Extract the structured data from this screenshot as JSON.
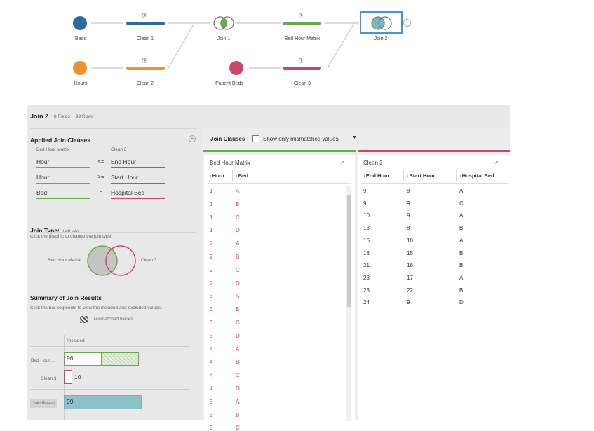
{
  "flow": {
    "nodes": [
      {
        "label": "Beds",
        "type": "input",
        "color": "#2e6a99"
      },
      {
        "label": "Clean 1",
        "type": "clean",
        "color": "#2e6a99"
      },
      {
        "label": "Hours",
        "type": "input",
        "color": "#f28e2b"
      },
      {
        "label": "Clean 2",
        "type": "clean",
        "color": "#f28e2b"
      },
      {
        "label": "Join 1",
        "type": "join"
      },
      {
        "label": "Bed Hour Matrix",
        "type": "clean",
        "color": "#6aa84f"
      },
      {
        "label": "Patient Beds",
        "type": "input",
        "color": "#c9486b"
      },
      {
        "label": "Clean 3",
        "type": "clean",
        "color": "#c9486b"
      },
      {
        "label": "Join 2",
        "type": "join",
        "selected": true
      }
    ]
  },
  "header": {
    "title": "Join 2",
    "fields": "8 Fields",
    "rows": "99 Rows"
  },
  "clauses": {
    "title": "Applied Join Clauses",
    "left_source": "Bed Hour Matrix",
    "right_source": "Clean 3",
    "items": [
      {
        "left": "Hour",
        "op": "<=",
        "right": "End Hour"
      },
      {
        "left": "Hour",
        "op": ">=",
        "right": "Start Hour"
      },
      {
        "left": "Bed",
        "op": "=",
        "right": "Hospital Bed"
      }
    ]
  },
  "join_type": {
    "title": "Join Type:",
    "value": "Left join",
    "hint": "Click the graphic to change the join type.",
    "left": "Bed Hour Matrix",
    "right": "Clean 3"
  },
  "summary": {
    "title": "Summary of Join Results",
    "hint": "Click the bar segments to view the included and excluded values.",
    "legend": "Mismatched values",
    "included": "Included",
    "rows": [
      {
        "label": "Bed Hour ...",
        "value": "96"
      },
      {
        "label": "Clean 3",
        "value": "10"
      },
      {
        "label": "Join Result",
        "value": "99"
      }
    ]
  },
  "toolbar": {
    "join_clauses": "Join Clauses",
    "mismatch": "Show only mismatched values"
  },
  "left_table": {
    "title": "Bed Hour Matrix",
    "columns": [
      "Hour",
      "Bed"
    ],
    "rows": [
      [
        "1",
        "A"
      ],
      [
        "1",
        "B"
      ],
      [
        "1",
        "C"
      ],
      [
        "1",
        "D"
      ],
      [
        "2",
        "A"
      ],
      [
        "2",
        "B"
      ],
      [
        "2",
        "C"
      ],
      [
        "2",
        "D"
      ],
      [
        "3",
        "A"
      ],
      [
        "3",
        "B"
      ],
      [
        "3",
        "C"
      ],
      [
        "3",
        "D"
      ],
      [
        "4",
        "A"
      ],
      [
        "4",
        "B"
      ],
      [
        "4",
        "C"
      ],
      [
        "4",
        "D"
      ],
      [
        "5",
        "A"
      ],
      [
        "5",
        "B"
      ],
      [
        "5",
        "C"
      ]
    ]
  },
  "right_table": {
    "title": "Clean 3",
    "columns": [
      "End Hour",
      "Start Hour",
      "Hospital Bed"
    ],
    "rows": [
      [
        "9",
        "8",
        "A"
      ],
      [
        "9",
        "9",
        "C"
      ],
      [
        "10",
        "9",
        "A"
      ],
      [
        "13",
        "8",
        "B"
      ],
      [
        "16",
        "10",
        "A"
      ],
      [
        "18",
        "15",
        "B"
      ],
      [
        "21",
        "18",
        "B"
      ],
      [
        "23",
        "17",
        "A"
      ],
      [
        "23",
        "22",
        "B"
      ],
      [
        "24",
        "9",
        "D"
      ]
    ]
  },
  "colors": {
    "green": "#6aa84f",
    "pink": "#c9486b",
    "teal": "#8fc1c8",
    "mismatch_text": "#e0393e"
  }
}
